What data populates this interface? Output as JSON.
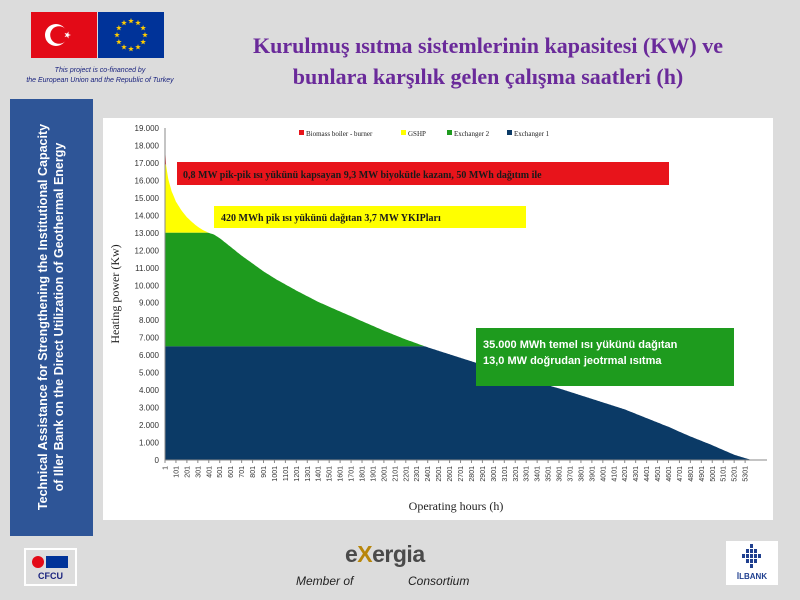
{
  "header": {
    "cofinance_line1": "This project is co-financed by",
    "cofinance_line2": "the European Union and the Republic of Turkey",
    "title_line1": "Kurulmuş ısıtma sistemlerinin kapasitesi (KW) ve",
    "title_line2": "bunlara karşılık gelen çalışma saatleri (h)"
  },
  "sidebar": {
    "line1": "Technical Assistance for Strengthening the Institutional Capacity",
    "line2": "of Iller Bank on the Direct  Utilization of Geothermal Energy"
  },
  "footer": {
    "cfcu_label": "CFCU",
    "exergia_prefix": "e",
    "exergia_x": "X",
    "exergia_rest": "ergia",
    "member_of": "Member of",
    "consortium": "Consortium",
    "ilbank_label": "İLBANK"
  },
  "colors": {
    "biomass": "#e8141b",
    "gshp": "#ffff00",
    "exchanger2": "#1e9b1e",
    "exchanger1": "#0b3a66",
    "title": "#6a2a9a",
    "sidebar": "#2e5597"
  },
  "chart_data": {
    "type": "area",
    "title": "",
    "xlabel": "Operating hours (h)",
    "ylabel": "Heating power (Kw)",
    "ylim": [
      0,
      19000
    ],
    "yticks": [
      "0",
      "1.000",
      "2.000",
      "3.000",
      "4.000",
      "5.000",
      "6.000",
      "7.000",
      "8.000",
      "9.000",
      "10.000",
      "11.000",
      "12.000",
      "13.000",
      "14.000",
      "15.000",
      "16.000",
      "17.000",
      "18.000",
      "19.000"
    ],
    "xlim": [
      1,
      5401
    ],
    "xticks": [
      "1",
      "101",
      "201",
      "301",
      "401",
      "501",
      "601",
      "701",
      "801",
      "901",
      "1001",
      "1101",
      "1201",
      "1301",
      "1401",
      "1501",
      "1601",
      "1701",
      "1801",
      "1901",
      "2001",
      "2101",
      "2201",
      "2301",
      "2401",
      "2501",
      "2601",
      "2701",
      "2801",
      "2901",
      "3001",
      "3101",
      "3201",
      "3301",
      "3401",
      "3501",
      "3601",
      "3701",
      "3801",
      "3901",
      "4001",
      "4101",
      "4201",
      "4301",
      "4401",
      "4501",
      "4601",
      "4701",
      "4801",
      "4901",
      "5001",
      "5101",
      "5201",
      "5301"
    ],
    "legend_position": "top",
    "grid": false,
    "load_curve": {
      "x": [
        1,
        10,
        30,
        60,
        100,
        150,
        200,
        250,
        300,
        350,
        400,
        450,
        500,
        600,
        700,
        800,
        900,
        1000,
        1200,
        1400,
        1600,
        1800,
        2000,
        2200,
        2400,
        2600,
        2800,
        3000,
        3200,
        3400,
        3600,
        3800,
        4000,
        4200,
        4400,
        4600,
        4800,
        5000,
        5200,
        5360
      ],
      "y": [
        18000,
        16900,
        16100,
        15400,
        14800,
        14300,
        13900,
        13600,
        13350,
        13150,
        13000,
        12900,
        12700,
        12200,
        11700,
        11250,
        10800,
        10400,
        9700,
        9050,
        8500,
        7950,
        7400,
        6900,
        6450,
        6050,
        5650,
        5250,
        4850,
        4450,
        4100,
        3700,
        3300,
        2900,
        2400,
        1900,
        1350,
        850,
        300,
        0
      ]
    },
    "series": [
      {
        "name": "Biomass boiler - burner",
        "color": "#e8141b",
        "capacity_kw": 19000,
        "floor_kw": 17000
      },
      {
        "name": "GSHP",
        "color": "#ffff00",
        "capacity_kw": 17000,
        "floor_kw": 13000
      },
      {
        "name": "Exchanger 2",
        "color": "#1e9b1e",
        "capacity_kw": 13000,
        "floor_kw": 6500
      },
      {
        "name": "Exchanger 1",
        "color": "#0b3a66",
        "capacity_kw": 6500,
        "floor_kw": 0
      }
    ],
    "annotations": [
      {
        "text": "0,8 MW pik-pik ısı yükünü kapsayan 9,3 MW biyokütle kazanı, 50 MWh dağıtım ile",
        "color": "#e8141b"
      },
      {
        "text": "420 MWh pik ısı yükünü dağıtan 3,7 MW YKIPları",
        "color": "#ffff00"
      },
      {
        "text": "35.000 MWh temel ısı yükünü dağıtan",
        "color": "#1e9b1e"
      },
      {
        "text": "13,0 MW doğrudan jeotrmal ısıtma",
        "color": "#1e9b1e"
      }
    ]
  }
}
